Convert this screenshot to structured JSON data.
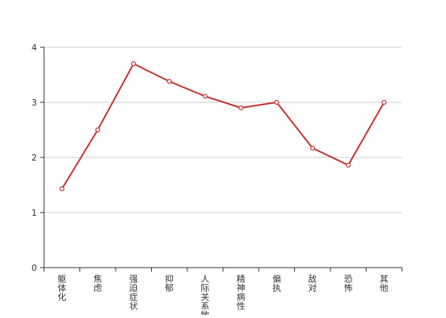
{
  "chart_data": {
    "type": "line",
    "categories": [
      [
        "躯",
        "体",
        "化"
      ],
      [
        "焦",
        "虑"
      ],
      [
        "强",
        "迫",
        "症",
        "状"
      ],
      [
        "抑",
        "郁"
      ],
      [
        "人",
        "际",
        "关",
        "系",
        "敏"
      ],
      [
        "精",
        "神",
        "病",
        "性"
      ],
      [
        "偏",
        "执"
      ],
      [
        "敌",
        "对"
      ],
      [
        "恐",
        "怖"
      ],
      [
        "其",
        "他"
      ]
    ],
    "values": [
      1.43,
      2.5,
      3.7,
      3.38,
      3.11,
      2.9,
      3.0,
      2.17,
      1.86,
      3.0
    ],
    "y_ticks": [
      "0",
      "1",
      "2",
      "3",
      "4"
    ],
    "ylim": [
      0,
      4
    ],
    "grid": true,
    "colors": {
      "line": "#c23531",
      "marker_fill": "#ffffff",
      "grid": "#cccccc",
      "axis": "#333333",
      "label": "#333333"
    }
  }
}
